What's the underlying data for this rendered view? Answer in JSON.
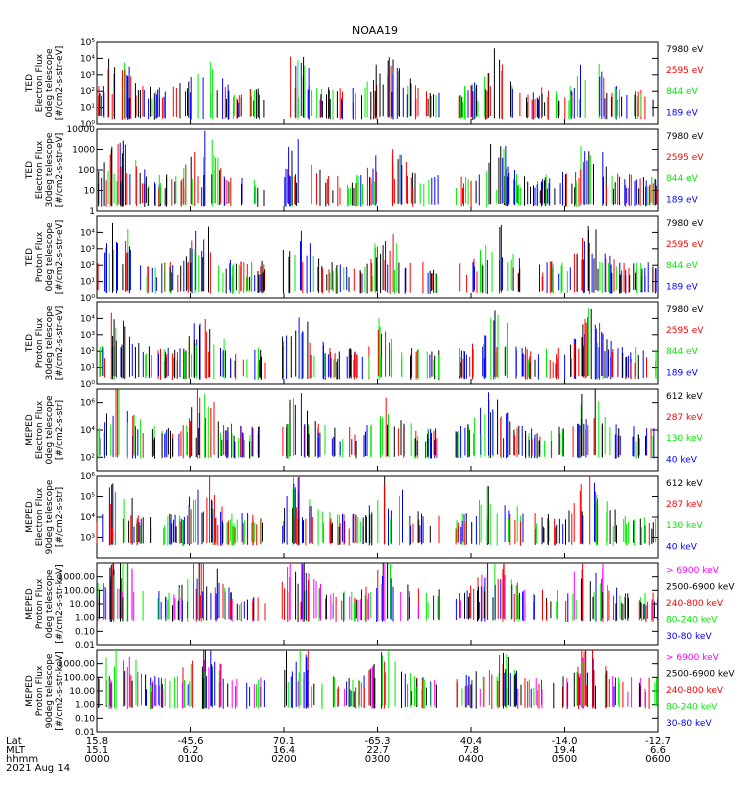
{
  "title": "NOAA19",
  "date_label": "2021 Aug 14",
  "colors": {
    "black": "#000000",
    "red": "#ff0000",
    "green": "#00ee00",
    "blue": "#0000ff",
    "magenta": "#ff00ff"
  },
  "x_axis": {
    "row_labels": [
      "Lat",
      "MLT",
      "hhmm"
    ],
    "ticks": [
      {
        "lat": "15.8",
        "mlt": "15.1",
        "hhmm": "0000"
      },
      {
        "lat": "-45.6",
        "mlt": "6.2",
        "hhmm": "0100"
      },
      {
        "lat": "70.1",
        "mlt": "16.4",
        "hhmm": "0200"
      },
      {
        "lat": "-65.3",
        "mlt": "22.7",
        "hhmm": "0300"
      },
      {
        "lat": "40.4",
        "mlt": "7.8",
        "hhmm": "0400"
      },
      {
        "lat": "-14.0",
        "mlt": "19.4",
        "hhmm": "0500"
      },
      {
        "lat": "-12.7",
        "mlt": "6.6",
        "hhmm": "0600"
      }
    ]
  },
  "chart_data": [
    {
      "type": "scatter",
      "ylabel": [
        "TED",
        "Electron Flux",
        "0deg telescope",
        "[#/cm2-s-str-eV]"
      ],
      "scale": "log",
      "ylim": [
        1,
        100000
      ],
      "yticks": [
        {
          "v": 1,
          "t": "10⁰"
        },
        {
          "v": 10,
          "t": "10¹"
        },
        {
          "v": 100,
          "t": "10²"
        },
        {
          "v": 1000,
          "t": "10³"
        },
        {
          "v": 10000,
          "t": "10⁴"
        },
        {
          "v": 100000,
          "t": "10⁵"
        }
      ],
      "legend": [
        {
          "label": "7980 eV",
          "color": "#000000"
        },
        {
          "label": "2595 eV",
          "color": "#ff0000"
        },
        {
          "label": "844 eV",
          "color": "#00ee00"
        },
        {
          "label": "189 eV",
          "color": "#0000ff"
        }
      ]
    },
    {
      "type": "scatter",
      "ylabel": [
        "TED",
        "Electron Flux",
        "30deg telescope",
        "[#/cm2-s-str-eV]"
      ],
      "scale": "log",
      "ylim": [
        1,
        10000
      ],
      "yticks": [
        {
          "v": 1,
          "t": "1"
        },
        {
          "v": 10,
          "t": "10"
        },
        {
          "v": 100,
          "t": "100"
        },
        {
          "v": 1000,
          "t": "1000"
        },
        {
          "v": 10000,
          "t": "10000"
        }
      ],
      "legend": [
        {
          "label": "7980 eV",
          "color": "#000000"
        },
        {
          "label": "2595 eV",
          "color": "#ff0000"
        },
        {
          "label": "844 eV",
          "color": "#00ee00"
        },
        {
          "label": "189 eV",
          "color": "#0000ff"
        }
      ]
    },
    {
      "type": "scatter",
      "ylabel": [
        "TED",
        "Proton Flux",
        "0deg telescope",
        "[#/cm2-s-str-eV]"
      ],
      "scale": "log",
      "ylim": [
        1,
        100000
      ],
      "yticks": [
        {
          "v": 1,
          "t": "10⁰"
        },
        {
          "v": 10,
          "t": "10¹"
        },
        {
          "v": 100,
          "t": "10²"
        },
        {
          "v": 1000,
          "t": "10³"
        },
        {
          "v": 10000,
          "t": "10⁴"
        }
      ],
      "legend": [
        {
          "label": "7980 eV",
          "color": "#000000"
        },
        {
          "label": "2595 eV",
          "color": "#ff0000"
        },
        {
          "label": "844 eV",
          "color": "#00ee00"
        },
        {
          "label": "189 eV",
          "color": "#0000ff"
        }
      ]
    },
    {
      "type": "scatter",
      "ylabel": [
        "TED",
        "Proton Flux",
        "30deg telescope",
        "[#/cm2-s-str-eV]"
      ],
      "scale": "log",
      "ylim": [
        1,
        100000
      ],
      "yticks": [
        {
          "v": 1,
          "t": "10⁰"
        },
        {
          "v": 10,
          "t": "10¹"
        },
        {
          "v": 100,
          "t": "10²"
        },
        {
          "v": 1000,
          "t": "10³"
        },
        {
          "v": 10000,
          "t": "10⁴"
        }
      ],
      "legend": [
        {
          "label": "7980 eV",
          "color": "#000000"
        },
        {
          "label": "2595 eV",
          "color": "#ff0000"
        },
        {
          "label": "844 eV",
          "color": "#00ee00"
        },
        {
          "label": "189 eV",
          "color": "#0000ff"
        }
      ]
    },
    {
      "type": "scatter",
      "ylabel": [
        "MEPED",
        "Electron Flux",
        "0deg telescope",
        "[#/cm2-s-str]"
      ],
      "scale": "log",
      "ylim": [
        10,
        10000000
      ],
      "yticks": [
        {
          "v": 100,
          "t": "10²"
        },
        {
          "v": 10000,
          "t": "10⁴"
        },
        {
          "v": 1000000,
          "t": "10⁶"
        }
      ],
      "legend": [
        {
          "label": "612 keV",
          "color": "#000000"
        },
        {
          "label": "287 keV",
          "color": "#ff0000"
        },
        {
          "label": "130 keV",
          "color": "#00ee00"
        },
        {
          "label": "40 keV",
          "color": "#0000ff"
        }
      ]
    },
    {
      "type": "scatter",
      "ylabel": [
        "MEPED",
        "Electron Flux",
        "90deg telescope",
        "[#/cm2-s-str]"
      ],
      "scale": "log",
      "ylim": [
        100,
        1000000
      ],
      "yticks": [
        {
          "v": 1000,
          "t": "10³"
        },
        {
          "v": 10000,
          "t": "10⁴"
        },
        {
          "v": 100000,
          "t": "10⁵"
        },
        {
          "v": 1000000,
          "t": "10⁶"
        }
      ],
      "legend": [
        {
          "label": "612 keV",
          "color": "#000000"
        },
        {
          "label": "287 keV",
          "color": "#ff0000"
        },
        {
          "label": "130 keV",
          "color": "#00ee00"
        },
        {
          "label": "40 keV",
          "color": "#0000ff"
        }
      ]
    },
    {
      "type": "scatter",
      "ylabel": [
        "MEPED",
        "Proton Flux",
        "0deg telescope",
        "[#/cm2-s-str-keV]"
      ],
      "scale": "log",
      "ylim": [
        0.01,
        10000
      ],
      "yticks": [
        {
          "v": 0.01,
          "t": "0.01"
        },
        {
          "v": 0.1,
          "t": "0.10"
        },
        {
          "v": 1,
          "t": "1.00"
        },
        {
          "v": 10,
          "t": "10.00"
        },
        {
          "v": 100,
          "t": "100.00"
        },
        {
          "v": 1000,
          "t": "1000.00"
        }
      ],
      "legend": [
        {
          "label": "> 6900 keV",
          "color": "#ff00ff"
        },
        {
          "label": "2500-6900 keV",
          "color": "#000000"
        },
        {
          "label": "240-800 keV",
          "color": "#ff0000"
        },
        {
          "label": "80-240 keV",
          "color": "#00ee00"
        },
        {
          "label": "30-80 keV",
          "color": "#0000ff"
        }
      ]
    },
    {
      "type": "scatter",
      "ylabel": [
        "MEPED",
        "Proton Flux",
        "90deg telescope",
        "[#/cm2-s-str-keV]"
      ],
      "scale": "log",
      "ylim": [
        0.01,
        10000
      ],
      "yticks": [
        {
          "v": 0.01,
          "t": "0.01"
        },
        {
          "v": 0.1,
          "t": "0.10"
        },
        {
          "v": 1,
          "t": "1.00"
        },
        {
          "v": 10,
          "t": "10.00"
        },
        {
          "v": 100,
          "t": "100.00"
        },
        {
          "v": 1000,
          "t": "1000.00"
        }
      ],
      "legend": [
        {
          "label": "> 6900 keV",
          "color": "#ff00ff"
        },
        {
          "label": "2500-6900 keV",
          "color": "#000000"
        },
        {
          "label": "240-800 keV",
          "color": "#ff0000"
        },
        {
          "label": "80-240 keV",
          "color": "#00ee00"
        },
        {
          "label": "30-80 keV",
          "color": "#0000ff"
        }
      ]
    }
  ]
}
